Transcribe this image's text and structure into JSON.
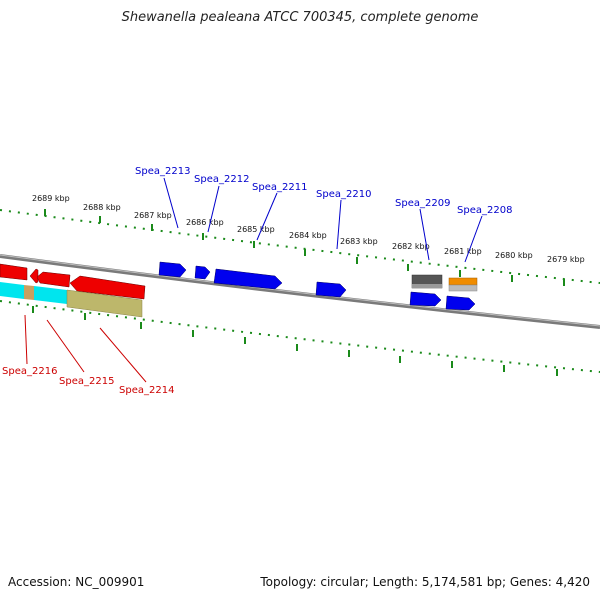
{
  "title": "Shewanella pealeana ATCC 700345, complete genome",
  "footer": {
    "accession": "Accession: NC_009901",
    "summary": "Topology: circular; Length: 5,174,581 bp; Genes: 4,420"
  },
  "colors": {
    "forward_gene": "#0000ee",
    "reverse_gene": "#ee0000",
    "tick": "#1a8a1a",
    "backbone": "#808080",
    "forward_label": "#0000cc",
    "reverse_label": "#cc0000"
  },
  "scale_ticks": [
    "2689 kbp",
    "2688 kbp",
    "2687 kbp",
    "2686 kbp",
    "2685 kbp",
    "2684 kbp",
    "2683 kbp",
    "2682 kbp",
    "2681 kbp",
    "2680 kbp",
    "2679 kbp"
  ],
  "forward_gene_labels": [
    "Spea_2213",
    "Spea_2212",
    "Spea_2211",
    "Spea_2210",
    "Spea_2209",
    "Spea_2208"
  ],
  "reverse_gene_labels": [
    "Spea_2216",
    "Spea_2215",
    "Spea_2214"
  ]
}
